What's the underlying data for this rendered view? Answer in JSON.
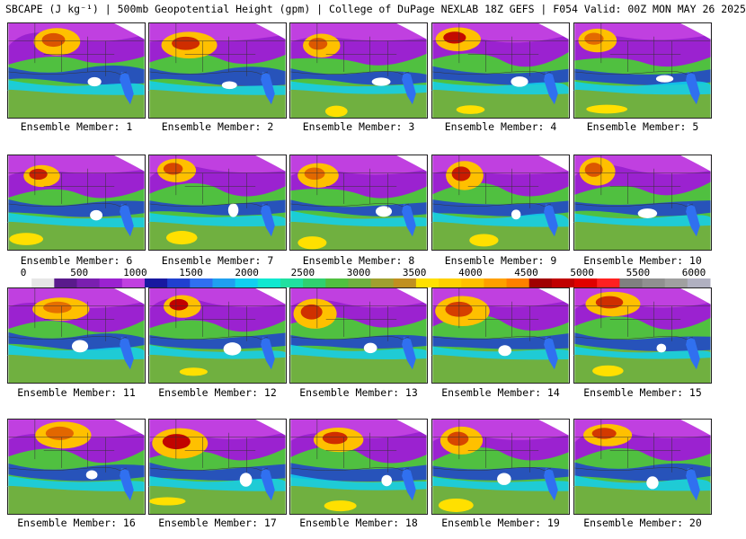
{
  "title": "SBCAPE (J kg⁻¹) | 500mb Geopotential Height (gpm) | College of DuPage NEXLAB 18Z GEFS | F054 Valid: 00Z MON MAY 26 2025",
  "member_label_prefix": "Ensemble Member:",
  "members": [
    "1",
    "2",
    "3",
    "4",
    "5",
    "6",
    "7",
    "8",
    "9",
    "10",
    "11",
    "12",
    "13",
    "14",
    "15",
    "16",
    "17",
    "18",
    "19",
    "20"
  ],
  "colorbar": {
    "labels": [
      "0",
      "500",
      "1000",
      "1500",
      "2000",
      "2500",
      "3000",
      "3500",
      "4000",
      "4500",
      "5000",
      "5500",
      "6000"
    ],
    "colors": [
      "#ffffff",
      "#e6e6e6",
      "#5a1a8c",
      "#7a1fb0",
      "#9b22d0",
      "#c040e0",
      "#1818a0",
      "#2040d0",
      "#3070f0",
      "#20a0f0",
      "#10d0f0",
      "#10e8d0",
      "#20e0a0",
      "#30d070",
      "#50c040",
      "#70b040",
      "#a0a030",
      "#c09020",
      "#ffe000",
      "#ffd000",
      "#ffc000",
      "#ffa000",
      "#ff8000",
      "#a00000",
      "#c00000",
      "#e00000",
      "#ff2020",
      "#808080",
      "#909090",
      "#a0a0a0",
      "#b0b0c0"
    ],
    "range": [
      0,
      6000
    ]
  }
}
